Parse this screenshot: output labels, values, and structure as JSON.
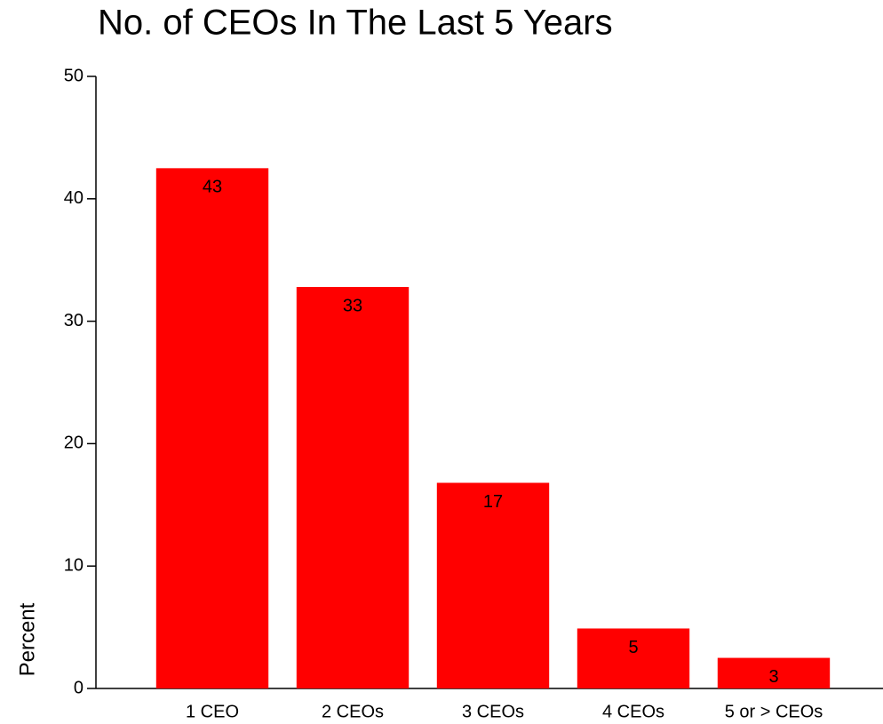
{
  "chart_data": {
    "type": "bar",
    "title": "No. of CEOs In The Last 5 Years",
    "ylabel": "Percent",
    "categories": [
      "1 CEO",
      "2 CEOs",
      "3 CEOs",
      "4 CEOs",
      "5 or > CEOs"
    ],
    "values": [
      42.5,
      32.8,
      16.8,
      4.9,
      2.5
    ],
    "value_labels": [
      "43",
      "33",
      "17",
      "5",
      "3"
    ],
    "color": "#ff0000",
    "ylim": [
      0,
      50
    ],
    "yticks": [
      0,
      10,
      20,
      30,
      40,
      50
    ],
    "grid": false
  }
}
